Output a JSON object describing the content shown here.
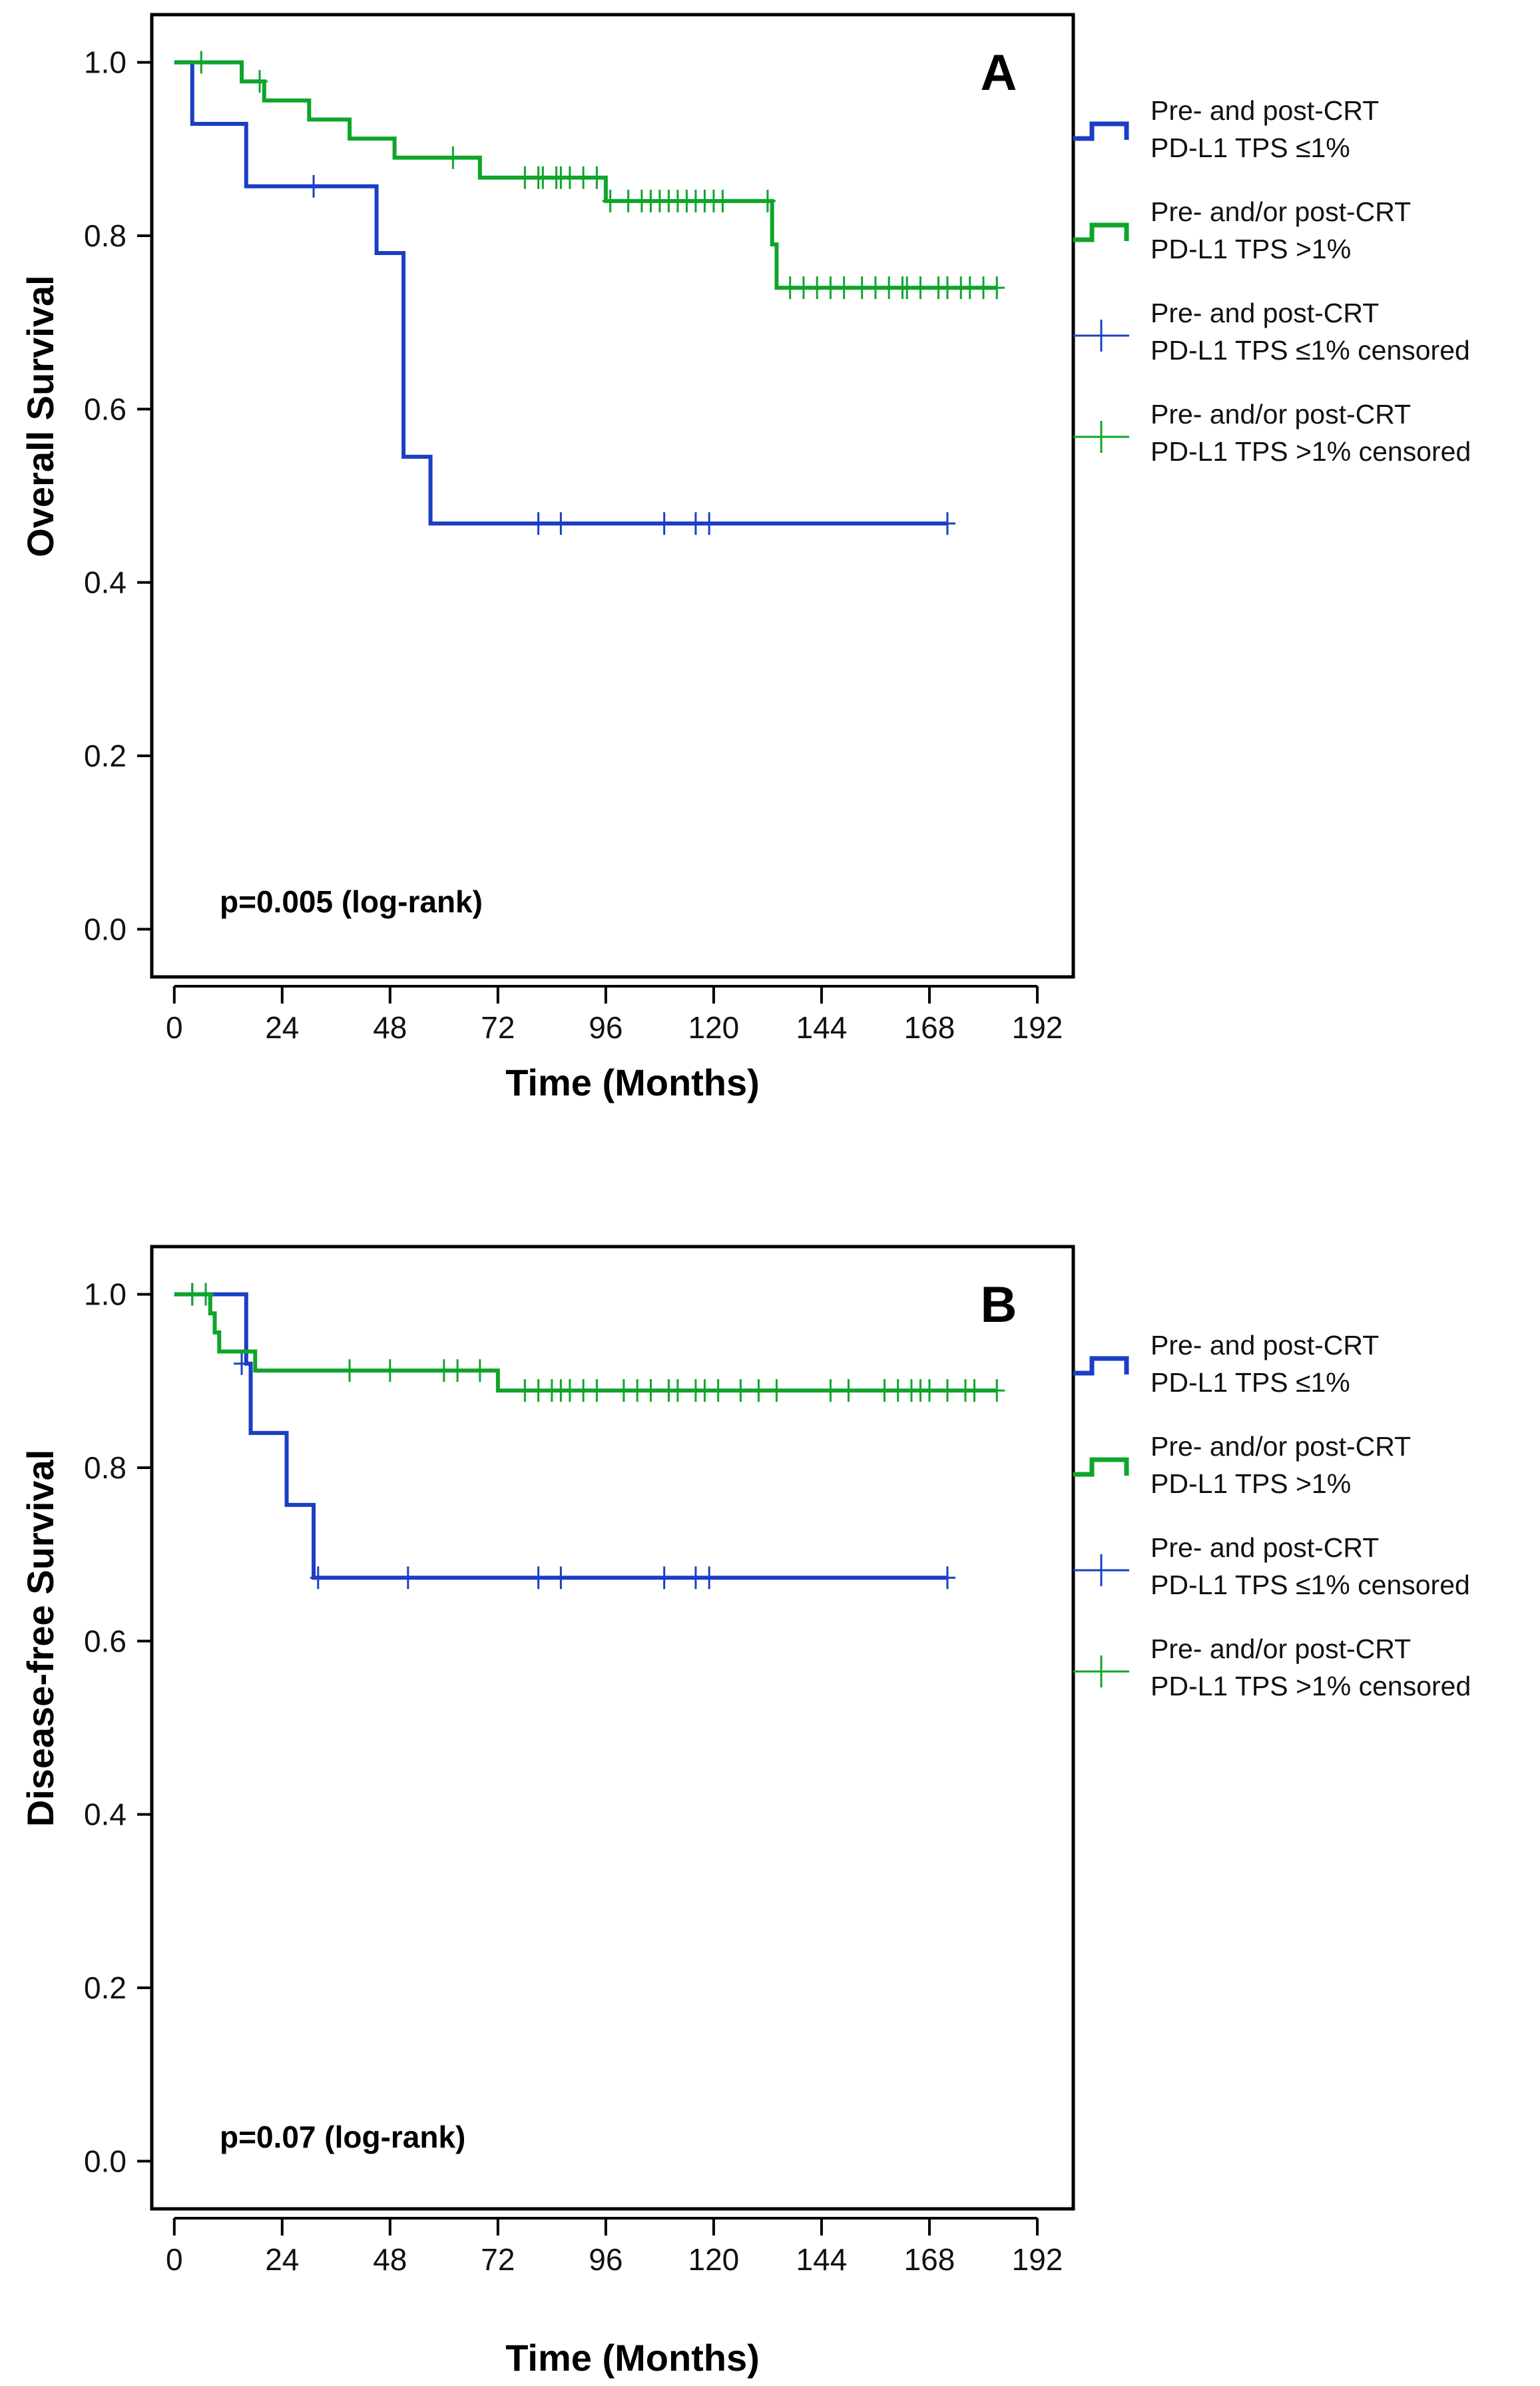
{
  "colors": {
    "blue": "#1a3fc4",
    "green": "#0ea52a",
    "axis": "#000000"
  },
  "legend": {
    "entries": [
      {
        "line1": "Pre- and post-CRT",
        "line2": "PD-L1 TPS ≤1%",
        "color": "#1a3fc4",
        "symbol": "step"
      },
      {
        "line1": "Pre- and/or post-CRT",
        "line2": "PD-L1 TPS >1%",
        "color": "#0ea52a",
        "symbol": "step"
      },
      {
        "line1": "Pre- and post-CRT",
        "line2": "PD-L1 TPS ≤1% censored",
        "color": "#1a3fc4",
        "symbol": "cross"
      },
      {
        "line1": "Pre- and/or post-CRT",
        "line2": "PD-L1 TPS >1% censored",
        "color": "#0ea52a",
        "symbol": "cross"
      }
    ]
  },
  "chart_data": [
    {
      "type": "line",
      "step": true,
      "panel_label": "A",
      "xlabel": "Time (Months)",
      "ylabel": "Overall Survival",
      "annotation": "p=0.005 (log-rank)",
      "xlim": [
        -5,
        200
      ],
      "ylim": [
        -0.055,
        1.055
      ],
      "xticks": [
        0,
        24,
        48,
        72,
        96,
        120,
        144,
        168,
        192
      ],
      "yticks": [
        0.0,
        0.2,
        0.4,
        0.6,
        0.8,
        1.0
      ],
      "xtick_labels": [
        "0",
        "24",
        "48",
        "72",
        "96",
        "120",
        "144",
        "168",
        "192"
      ],
      "ytick_labels": [
        "0.0",
        "0.2",
        "0.4",
        "0.6",
        "0.8",
        "1.0"
      ],
      "grid": false,
      "legend_position": "right",
      "series": [
        {
          "color": "#1a3fc4",
          "steps": [
            [
              0,
              1.0
            ],
            [
              4,
              0.929
            ],
            [
              16,
              0.857
            ],
            [
              45,
              0.78
            ],
            [
              51,
              0.545
            ],
            [
              57,
              0.468
            ],
            [
              172,
              0.468
            ]
          ],
          "censored": [
            [
              31,
              0.857
            ],
            [
              81,
              0.468
            ],
            [
              86,
              0.468
            ],
            [
              109,
              0.468
            ],
            [
              116,
              0.468
            ],
            [
              119,
              0.468
            ],
            [
              172,
              0.468
            ]
          ]
        },
        {
          "color": "#0ea52a",
          "steps": [
            [
              0,
              1.0
            ],
            [
              15,
              0.978
            ],
            [
              20,
              0.956
            ],
            [
              30,
              0.934
            ],
            [
              39,
              0.912
            ],
            [
              49,
              0.89
            ],
            [
              68,
              0.867
            ],
            [
              96,
              0.84
            ],
            [
              133,
              0.79
            ],
            [
              134,
              0.74
            ],
            [
              183,
              0.74
            ]
          ],
          "censored": [
            [
              6,
              1.0
            ],
            [
              19,
              0.978
            ],
            [
              62,
              0.89
            ],
            [
              78,
              0.867
            ],
            [
              81,
              0.867
            ],
            [
              82,
              0.867
            ],
            [
              85,
              0.867
            ],
            [
              86,
              0.867
            ],
            [
              88,
              0.867
            ],
            [
              91,
              0.867
            ],
            [
              94,
              0.867
            ],
            [
              97,
              0.84
            ],
            [
              101,
              0.84
            ],
            [
              104,
              0.84
            ],
            [
              106,
              0.84
            ],
            [
              108,
              0.84
            ],
            [
              110,
              0.84
            ],
            [
              112,
              0.84
            ],
            [
              114,
              0.84
            ],
            [
              116,
              0.84
            ],
            [
              118,
              0.84
            ],
            [
              120,
              0.84
            ],
            [
              122,
              0.84
            ],
            [
              132,
              0.84
            ],
            [
              137,
              0.74
            ],
            [
              140,
              0.74
            ],
            [
              143,
              0.74
            ],
            [
              146,
              0.74
            ],
            [
              149,
              0.74
            ],
            [
              153,
              0.74
            ],
            [
              156,
              0.74
            ],
            [
              159,
              0.74
            ],
            [
              162,
              0.74
            ],
            [
              163,
              0.74
            ],
            [
              166,
              0.74
            ],
            [
              170,
              0.74
            ],
            [
              172,
              0.74
            ],
            [
              175,
              0.74
            ],
            [
              177,
              0.74
            ],
            [
              180,
              0.74
            ],
            [
              183,
              0.74
            ]
          ]
        }
      ]
    },
    {
      "type": "line",
      "step": true,
      "panel_label": "B",
      "xlabel": "Time (Months)",
      "ylabel": "Disease-free Survival",
      "annotation": "p=0.07 (log-rank)",
      "xlim": [
        -5,
        200
      ],
      "ylim": [
        -0.055,
        1.055
      ],
      "xticks": [
        0,
        24,
        48,
        72,
        96,
        120,
        144,
        168,
        192
      ],
      "yticks": [
        0.0,
        0.2,
        0.4,
        0.6,
        0.8,
        1.0
      ],
      "xtick_labels": [
        "0",
        "24",
        "48",
        "72",
        "96",
        "120",
        "144",
        "168",
        "192"
      ],
      "ytick_labels": [
        "0.0",
        "0.2",
        "0.4",
        "0.6",
        "0.8",
        "1.0"
      ],
      "grid": false,
      "legend_position": "right",
      "series": [
        {
          "color": "#1a3fc4",
          "steps": [
            [
              0,
              1.0
            ],
            [
              16,
              0.92
            ],
            [
              17,
              0.84
            ],
            [
              25,
              0.757
            ],
            [
              31,
              0.673
            ],
            [
              172,
              0.673
            ]
          ],
          "censored": [
            [
              4,
              1.0
            ],
            [
              15,
              0.92
            ],
            [
              32,
              0.673
            ],
            [
              52,
              0.673
            ],
            [
              81,
              0.673
            ],
            [
              86,
              0.673
            ],
            [
              109,
              0.673
            ],
            [
              116,
              0.673
            ],
            [
              119,
              0.673
            ],
            [
              172,
              0.673
            ]
          ]
        },
        {
          "color": "#0ea52a",
          "steps": [
            [
              0,
              1.0
            ],
            [
              8,
              0.978
            ],
            [
              9,
              0.956
            ],
            [
              10,
              0.934
            ],
            [
              18,
              0.912
            ],
            [
              72,
              0.889
            ],
            [
              183,
              0.889
            ]
          ],
          "censored": [
            [
              4,
              1.0
            ],
            [
              7,
              1.0
            ],
            [
              39,
              0.912
            ],
            [
              48,
              0.912
            ],
            [
              60,
              0.912
            ],
            [
              63,
              0.912
            ],
            [
              68,
              0.912
            ],
            [
              78,
              0.889
            ],
            [
              81,
              0.889
            ],
            [
              84,
              0.889
            ],
            [
              86,
              0.889
            ],
            [
              88,
              0.889
            ],
            [
              91,
              0.889
            ],
            [
              94,
              0.889
            ],
            [
              100,
              0.889
            ],
            [
              103,
              0.889
            ],
            [
              106,
              0.889
            ],
            [
              110,
              0.889
            ],
            [
              112,
              0.889
            ],
            [
              116,
              0.889
            ],
            [
              118,
              0.889
            ],
            [
              121,
              0.889
            ],
            [
              126,
              0.889
            ],
            [
              130,
              0.889
            ],
            [
              134,
              0.889
            ],
            [
              146,
              0.889
            ],
            [
              150,
              0.889
            ],
            [
              158,
              0.889
            ],
            [
              161,
              0.889
            ],
            [
              164,
              0.889
            ],
            [
              166,
              0.889
            ],
            [
              168,
              0.889
            ],
            [
              172,
              0.889
            ],
            [
              176,
              0.889
            ],
            [
              178,
              0.889
            ],
            [
              183,
              0.889
            ]
          ]
        }
      ]
    }
  ]
}
